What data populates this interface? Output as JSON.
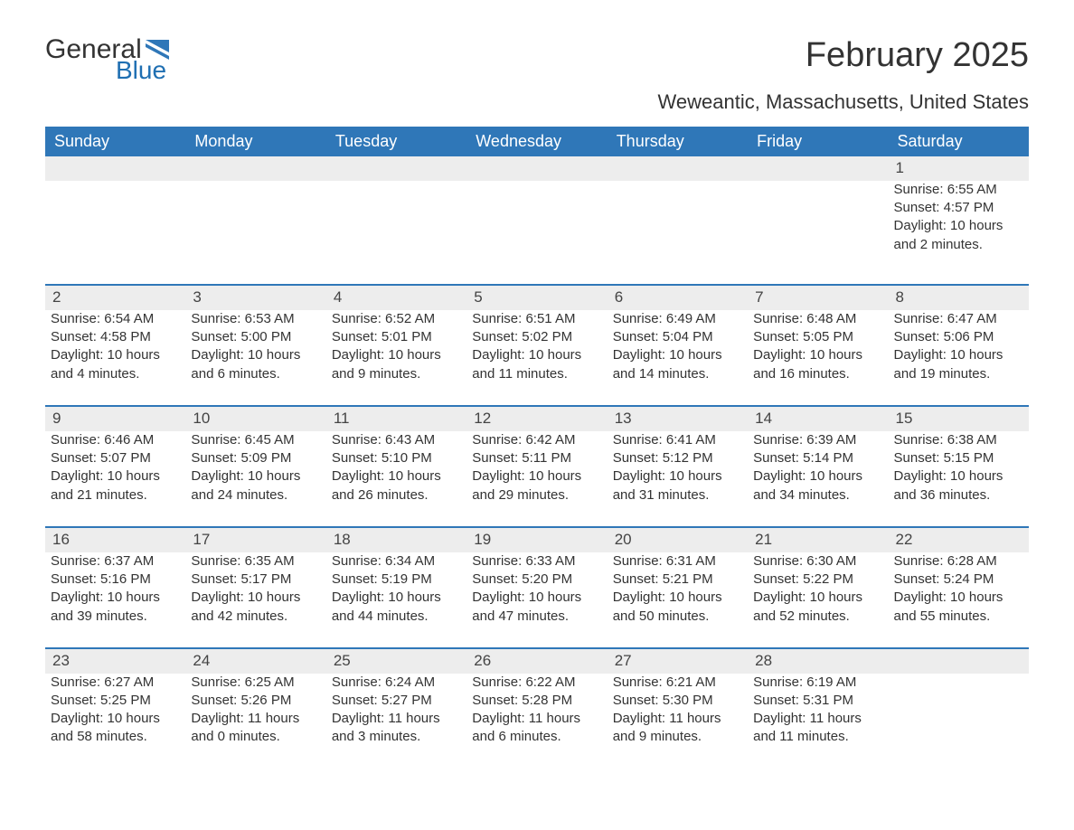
{
  "logo": {
    "general": "General",
    "blue": "Blue",
    "flag_color": "#2f77b8"
  },
  "title": "February 2025",
  "subtitle": "Weweantic, Massachusetts, United States",
  "colors": {
    "header_bg": "#2f77b8",
    "header_text": "#ffffff",
    "daynum_bg": "#ededed",
    "text": "#333333",
    "page_bg": "#ffffff"
  },
  "weekdays": [
    "Sunday",
    "Monday",
    "Tuesday",
    "Wednesday",
    "Thursday",
    "Friday",
    "Saturday"
  ],
  "weeks": [
    [
      null,
      null,
      null,
      null,
      null,
      null,
      {
        "n": "1",
        "sr": "6:55 AM",
        "ss": "4:57 PM",
        "dl": "10 hours and 2 minutes."
      }
    ],
    [
      {
        "n": "2",
        "sr": "6:54 AM",
        "ss": "4:58 PM",
        "dl": "10 hours and 4 minutes."
      },
      {
        "n": "3",
        "sr": "6:53 AM",
        "ss": "5:00 PM",
        "dl": "10 hours and 6 minutes."
      },
      {
        "n": "4",
        "sr": "6:52 AM",
        "ss": "5:01 PM",
        "dl": "10 hours and 9 minutes."
      },
      {
        "n": "5",
        "sr": "6:51 AM",
        "ss": "5:02 PM",
        "dl": "10 hours and 11 minutes."
      },
      {
        "n": "6",
        "sr": "6:49 AM",
        "ss": "5:04 PM",
        "dl": "10 hours and 14 minutes."
      },
      {
        "n": "7",
        "sr": "6:48 AM",
        "ss": "5:05 PM",
        "dl": "10 hours and 16 minutes."
      },
      {
        "n": "8",
        "sr": "6:47 AM",
        "ss": "5:06 PM",
        "dl": "10 hours and 19 minutes."
      }
    ],
    [
      {
        "n": "9",
        "sr": "6:46 AM",
        "ss": "5:07 PM",
        "dl": "10 hours and 21 minutes."
      },
      {
        "n": "10",
        "sr": "6:45 AM",
        "ss": "5:09 PM",
        "dl": "10 hours and 24 minutes."
      },
      {
        "n": "11",
        "sr": "6:43 AM",
        "ss": "5:10 PM",
        "dl": "10 hours and 26 minutes."
      },
      {
        "n": "12",
        "sr": "6:42 AM",
        "ss": "5:11 PM",
        "dl": "10 hours and 29 minutes."
      },
      {
        "n": "13",
        "sr": "6:41 AM",
        "ss": "5:12 PM",
        "dl": "10 hours and 31 minutes."
      },
      {
        "n": "14",
        "sr": "6:39 AM",
        "ss": "5:14 PM",
        "dl": "10 hours and 34 minutes."
      },
      {
        "n": "15",
        "sr": "6:38 AM",
        "ss": "5:15 PM",
        "dl": "10 hours and 36 minutes."
      }
    ],
    [
      {
        "n": "16",
        "sr": "6:37 AM",
        "ss": "5:16 PM",
        "dl": "10 hours and 39 minutes."
      },
      {
        "n": "17",
        "sr": "6:35 AM",
        "ss": "5:17 PM",
        "dl": "10 hours and 42 minutes."
      },
      {
        "n": "18",
        "sr": "6:34 AM",
        "ss": "5:19 PM",
        "dl": "10 hours and 44 minutes."
      },
      {
        "n": "19",
        "sr": "6:33 AM",
        "ss": "5:20 PM",
        "dl": "10 hours and 47 minutes."
      },
      {
        "n": "20",
        "sr": "6:31 AM",
        "ss": "5:21 PM",
        "dl": "10 hours and 50 minutes."
      },
      {
        "n": "21",
        "sr": "6:30 AM",
        "ss": "5:22 PM",
        "dl": "10 hours and 52 minutes."
      },
      {
        "n": "22",
        "sr": "6:28 AM",
        "ss": "5:24 PM",
        "dl": "10 hours and 55 minutes."
      }
    ],
    [
      {
        "n": "23",
        "sr": "6:27 AM",
        "ss": "5:25 PM",
        "dl": "10 hours and 58 minutes."
      },
      {
        "n": "24",
        "sr": "6:25 AM",
        "ss": "5:26 PM",
        "dl": "11 hours and 0 minutes."
      },
      {
        "n": "25",
        "sr": "6:24 AM",
        "ss": "5:27 PM",
        "dl": "11 hours and 3 minutes."
      },
      {
        "n": "26",
        "sr": "6:22 AM",
        "ss": "5:28 PM",
        "dl": "11 hours and 6 minutes."
      },
      {
        "n": "27",
        "sr": "6:21 AM",
        "ss": "5:30 PM",
        "dl": "11 hours and 9 minutes."
      },
      {
        "n": "28",
        "sr": "6:19 AM",
        "ss": "5:31 PM",
        "dl": "11 hours and 11 minutes."
      },
      null
    ]
  ],
  "labels": {
    "sunrise": "Sunrise: ",
    "sunset": "Sunset: ",
    "daylight": "Daylight: "
  }
}
